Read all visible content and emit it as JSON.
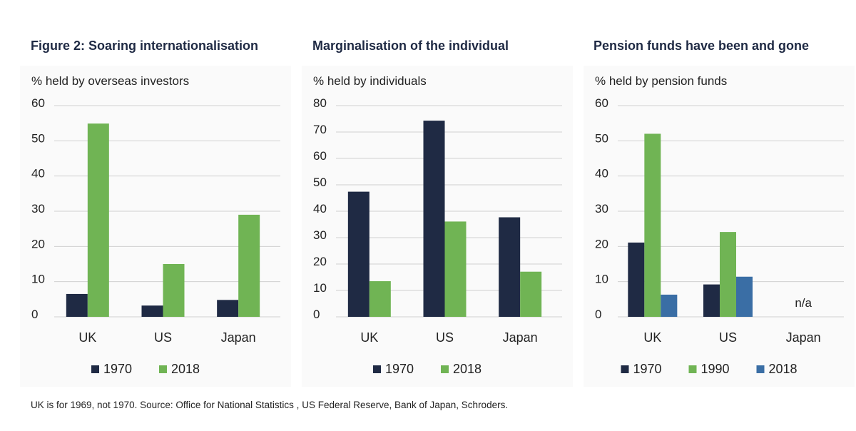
{
  "chart_data": [
    {
      "type": "bar",
      "title": "Figure 2: Soaring internationalisation",
      "ylabel": "% held by overseas investors",
      "categories": [
        "UK",
        "US",
        "Japan"
      ],
      "ylim": [
        0,
        60
      ],
      "yticks": [
        0,
        10,
        20,
        30,
        40,
        50,
        60
      ],
      "series": [
        {
          "name": "1970",
          "color": "#1f2a44",
          "values": [
            6.5,
            3.2,
            4.8
          ]
        },
        {
          "name": "2018",
          "color": "#70b454",
          "values": [
            54.9,
            15.0,
            29.0
          ]
        }
      ],
      "legend_position": "bottom",
      "grid": true
    },
    {
      "type": "bar",
      "title": "Marginalisation of the individual",
      "ylabel": "% held by individuals",
      "categories": [
        "UK",
        "US",
        "Japan"
      ],
      "ylim": [
        0,
        80
      ],
      "yticks": [
        0,
        10,
        20,
        30,
        40,
        50,
        60,
        70,
        80
      ],
      "series": [
        {
          "name": "1970",
          "color": "#1f2a44",
          "values": [
            47.4,
            74.3,
            37.7
          ]
        },
        {
          "name": "2018",
          "color": "#70b454",
          "values": [
            13.5,
            36.1,
            17.1
          ]
        }
      ],
      "legend_position": "bottom",
      "grid": true
    },
    {
      "type": "bar",
      "title": "Pension funds have been and gone",
      "ylabel": "% held by pension funds",
      "categories": [
        "UK",
        "US",
        "Japan"
      ],
      "ylim": [
        0,
        60
      ],
      "yticks": [
        0,
        10,
        20,
        30,
        40,
        50,
        60
      ],
      "series": [
        {
          "name": "1970",
          "color": "#1f2a44",
          "values": [
            21.1,
            9.2,
            null
          ]
        },
        {
          "name": "1990",
          "color": "#70b454",
          "values": [
            52.0,
            24.1,
            null
          ]
        },
        {
          "name": "2018",
          "color": "#3a6ea5",
          "values": [
            6.3,
            11.4,
            null
          ]
        }
      ],
      "annotations": [
        {
          "category": "Japan",
          "text": "n/a"
        }
      ],
      "legend_position": "bottom",
      "grid": true
    }
  ],
  "footnote": "UK is for 1969, not 1970. Source: Office for National Statistics , US Federal Reserve, Bank of Japan, Schroders."
}
